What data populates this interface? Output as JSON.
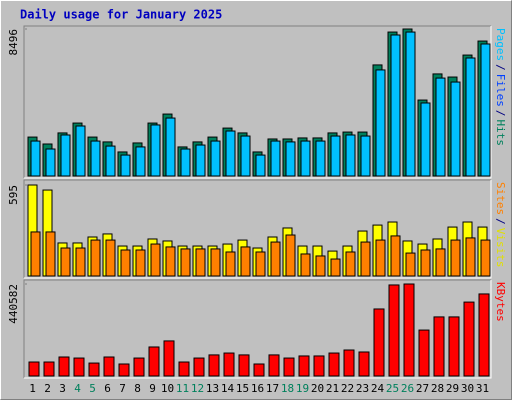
{
  "chart_data": {
    "type": "bar",
    "title": "Daily usage for January 2025",
    "categories": [
      "1",
      "2",
      "3",
      "4",
      "5",
      "6",
      "7",
      "8",
      "9",
      "10",
      "11",
      "12",
      "13",
      "14",
      "15",
      "16",
      "17",
      "18",
      "19",
      "20",
      "21",
      "22",
      "23",
      "24",
      "25",
      "26",
      "27",
      "28",
      "29",
      "30",
      "31"
    ],
    "category_colors": [
      "#000000",
      "#000000",
      "#000000",
      "#00805c",
      "#00805c",
      "#000000",
      "#000000",
      "#000000",
      "#000000",
      "#000000",
      "#00805c",
      "#00805c",
      "#000000",
      "#000000",
      "#000000",
      "#000000",
      "#000000",
      "#00805c",
      "#00805c",
      "#000000",
      "#000000",
      "#000000",
      "#000000",
      "#000000",
      "#00805c",
      "#00805c",
      "#000000",
      "#000000",
      "#000000",
      "#000000",
      "#000000"
    ],
    "panels": [
      {
        "label": [
          {
            "text": "Pages",
            "color": "#00c0ff"
          },
          {
            "text": "/",
            "color": "#000080"
          },
          {
            "text": "Files",
            "color": "#0040ff"
          },
          {
            "text": "/",
            "color": "#000080"
          },
          {
            "text": "Hits",
            "color": "#00805c"
          }
        ],
        "ylim": [
          0,
          8496
        ],
        "yticks": [
          8496
        ],
        "series": [
          {
            "color": "#00805c",
            "values": [
              2250,
              1850,
              2490,
              3060,
              2250,
              1970,
              1390,
              1910,
              3060,
              3580,
              1680,
              1970,
              2250,
              2770,
              2490,
              1390,
              2140,
              2140,
              2200,
              2200,
              2490,
              2540,
              2540,
              6420,
              8320,
              8496,
              4390,
              5900,
              5720,
              6990,
              7800
            ]
          },
          {
            "color": "#00c0ff",
            "values": [
              2020,
              1560,
              2370,
              2890,
              2020,
              1730,
              1210,
              1680,
              2950,
              3350,
              1560,
              1790,
              2020,
              2600,
              2310,
              1210,
              2020,
              1970,
              2020,
              2020,
              2310,
              2370,
              2310,
              6130,
              8150,
              8320,
              4220,
              5660,
              5430,
              6820,
              7630
            ]
          }
        ]
      },
      {
        "label": [
          {
            "text": "Sites",
            "color": "#ff8000"
          },
          {
            "text": "/",
            "color": "#000080"
          },
          {
            "text": "Visits",
            "color": "#e0e000"
          }
        ],
        "ylim": [
          0,
          595
        ],
        "yticks": [
          595
        ],
        "series": [
          {
            "color": "#ffff00",
            "values": [
              595,
              562,
              216,
              216,
              255,
              275,
              196,
              196,
              242,
              229,
              196,
              196,
              196,
              209,
              235,
              183,
              255,
              314,
              196,
              196,
              163,
              196,
              294,
              333,
              353,
              229,
              209,
              242,
              320,
              353,
              320
            ]
          },
          {
            "color": "#ff8000",
            "values": [
              288,
              288,
              183,
              183,
              235,
              235,
              170,
              170,
              209,
              190,
              177,
              177,
              177,
              157,
              190,
              157,
              222,
              268,
              144,
              131,
              111,
              157,
              222,
              235,
              262,
              150,
              170,
              177,
              235,
              249,
              235
            ]
          }
        ]
      },
      {
        "label": [
          {
            "text": "KBytes",
            "color": "#ff0000"
          }
        ],
        "ylim": [
          0,
          440582
        ],
        "yticks": [
          440582
        ],
        "series": [
          {
            "color": "#ff0000",
            "values": [
              67000,
              67000,
              91000,
              86000,
              62000,
              91000,
              57500,
              86000,
              139000,
              168000,
              67000,
              86000,
              101000,
              110000,
              101000,
              57500,
              101000,
              86000,
              96000,
              96000,
              110000,
              124500,
              115000,
              321000,
              436000,
              440582,
              220000,
              283000,
              283000,
              354000,
              393000
            ]
          }
        ]
      }
    ]
  }
}
